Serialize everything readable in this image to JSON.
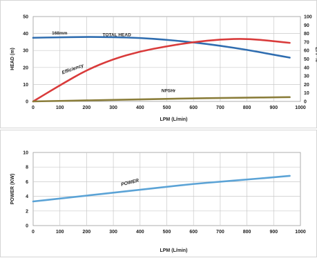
{
  "chart_data": [
    {
      "type": "line",
      "xlabel": "LPM (L/min)",
      "ylabel": "HEAD (m)",
      "y2label": "EFF %",
      "xlim": [
        0,
        1000
      ],
      "xticks": [
        0,
        100,
        200,
        300,
        400,
        500,
        600,
        700,
        800,
        900,
        1000
      ],
      "ylim": [
        0,
        50
      ],
      "yticks": [
        0,
        10,
        20,
        30,
        40,
        50
      ],
      "y2lim": [
        0,
        100
      ],
      "y2ticks": [
        0,
        10,
        20,
        30,
        40,
        50,
        60,
        70,
        80,
        90,
        100
      ],
      "grid": true,
      "annotations": [
        {
          "text": "168mm",
          "x": 70,
          "y": 39.5
        },
        {
          "text": "TOTAL HEAD",
          "x": 260,
          "y": 38.5
        },
        {
          "text": "Efficiency",
          "x": 110,
          "y": 16,
          "angle": -20
        },
        {
          "text": "NPSHr",
          "x": 480,
          "y": 5.5
        }
      ],
      "series": [
        {
          "name": "TOTAL HEAD",
          "axis": "left",
          "color": "#2f6db0",
          "x": [
            0,
            100,
            200,
            300,
            400,
            500,
            600,
            700,
            800,
            900,
            960
          ],
          "y": [
            37.5,
            37.8,
            38.0,
            37.9,
            37.4,
            36.3,
            34.8,
            32.8,
            30.4,
            27.5,
            25.8
          ]
        },
        {
          "name": "Efficiency",
          "axis": "right",
          "color": "#d93b3b",
          "x": [
            0,
            100,
            200,
            300,
            400,
            500,
            600,
            700,
            800,
            900,
            960
          ],
          "y": [
            0,
            19,
            37,
            50,
            59,
            65,
            70,
            73,
            74,
            71,
            69
          ]
        },
        {
          "name": "NPSHr",
          "axis": "left",
          "color": "#8a7d3a",
          "x": [
            0,
            100,
            200,
            300,
            400,
            500,
            600,
            700,
            800,
            900,
            960
          ],
          "y": [
            0,
            0.3,
            0.6,
            0.9,
            1.2,
            1.5,
            1.8,
            2.0,
            2.2,
            2.4,
            2.5
          ]
        }
      ]
    },
    {
      "type": "line",
      "xlabel": "LPM (L/min)",
      "ylabel": "POWER (KW)",
      "xlim": [
        0,
        1000
      ],
      "xticks": [
        0,
        100,
        200,
        300,
        400,
        500,
        600,
        700,
        800,
        900,
        1000
      ],
      "ylim": [
        0,
        10
      ],
      "yticks": [
        0,
        2,
        4,
        6,
        8,
        10
      ],
      "grid": true,
      "annotations": [
        {
          "text": "POWER",
          "x": 330,
          "y": 5.4,
          "angle": -14
        }
      ],
      "series": [
        {
          "name": "POWER",
          "axis": "left",
          "color": "#5ba3d6",
          "x": [
            0,
            100,
            200,
            300,
            400,
            500,
            600,
            700,
            800,
            900,
            960
          ],
          "y": [
            3.3,
            3.7,
            4.1,
            4.5,
            4.9,
            5.3,
            5.7,
            6.0,
            6.3,
            6.6,
            6.8
          ]
        }
      ]
    }
  ]
}
